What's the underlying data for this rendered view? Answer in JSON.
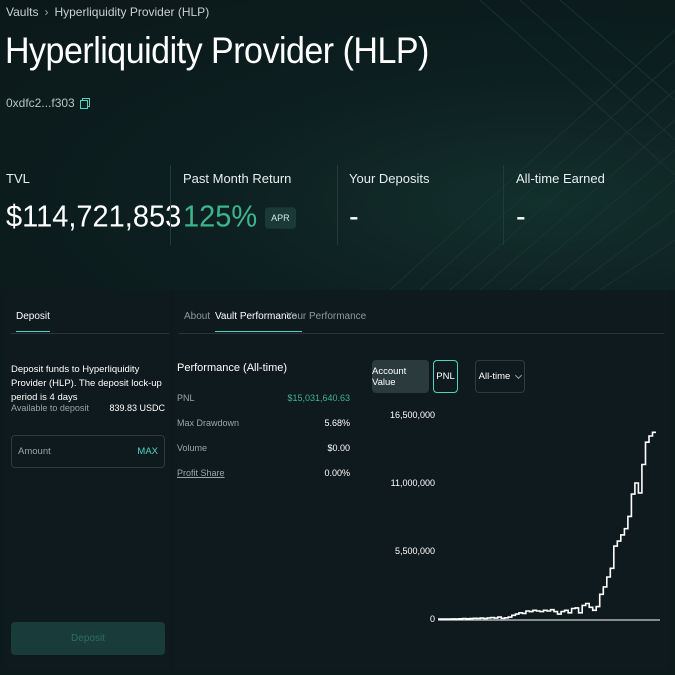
{
  "breadcrumb": {
    "root": "Vaults",
    "current": "Hyperliquidity Provider (HLP)"
  },
  "page": {
    "title": "Hyperliquidity Provider (HLP)",
    "address": "0xdfc2...f303"
  },
  "stats": {
    "tvl": {
      "label": "TVL",
      "value": "$114,721,853"
    },
    "return": {
      "label": "Past Month Return",
      "value": "125%",
      "badge": "APR"
    },
    "deposits": {
      "label": "Your Deposits",
      "value": "-"
    },
    "earned": {
      "label": "All-time Earned",
      "value": "-"
    }
  },
  "deposit": {
    "tab": "Deposit",
    "description": "Deposit funds to Hyperliquidity Provider (HLP). The deposit lock-up period is 4 days",
    "available_label": "Available to deposit",
    "available_value": "839.83 USDC",
    "amount_placeholder": "Amount",
    "max_label": "MAX",
    "button_label": "Deposit"
  },
  "tabs": [
    "About",
    "Vault Performance",
    "Your Performance"
  ],
  "performance": {
    "title": "Performance (All-time)",
    "rows": [
      {
        "label": "PNL",
        "value": "$15,031,640.63"
      },
      {
        "label": "Max Drawdown",
        "value": "5.68%"
      },
      {
        "label": "Volume",
        "value": "$0.00"
      },
      {
        "label": "Profit Share",
        "value": "0.00%"
      }
    ]
  },
  "chart_controls": {
    "account_value": "Account Value",
    "pnl": "PNL",
    "range": "All-time"
  },
  "colors": {
    "accent": "#50d2c1",
    "positive": "#3cb48c",
    "background": "#0c1a1c",
    "panel": "#0f1a1e"
  },
  "chart_data": {
    "type": "line",
    "step": true,
    "title": "",
    "xlabel": "",
    "ylabel": "",
    "ylim": [
      0,
      16500000
    ],
    "yticks": [
      {
        "value": 16500000,
        "label": "16,500,000"
      },
      {
        "value": 11000000,
        "label": "11,000,000"
      },
      {
        "value": 5500000,
        "label": "5,500,000"
      },
      {
        "value": 0,
        "label": "0"
      }
    ],
    "series": [
      {
        "values": [
          0,
          0,
          0,
          0,
          10000,
          0,
          20000,
          40000,
          20000,
          30000,
          60000,
          50000,
          70000,
          40000,
          90000,
          110000,
          70000,
          150000,
          60000,
          100000,
          150000,
          300000,
          400000,
          500000,
          450000,
          650000,
          600000,
          700000,
          650000,
          600000,
          700000,
          650000,
          750000,
          600000,
          400000,
          600000,
          700000,
          500000,
          850000,
          900000,
          500000,
          1100000,
          1250000,
          950000,
          700000,
          1000000,
          2000000,
          2600000,
          3400000,
          4100000,
          5900000,
          6300000,
          6800000,
          7300000,
          8300000,
          10100000,
          11000000,
          10200000,
          12500000,
          14300000,
          14800000,
          15100000
        ]
      }
    ]
  }
}
